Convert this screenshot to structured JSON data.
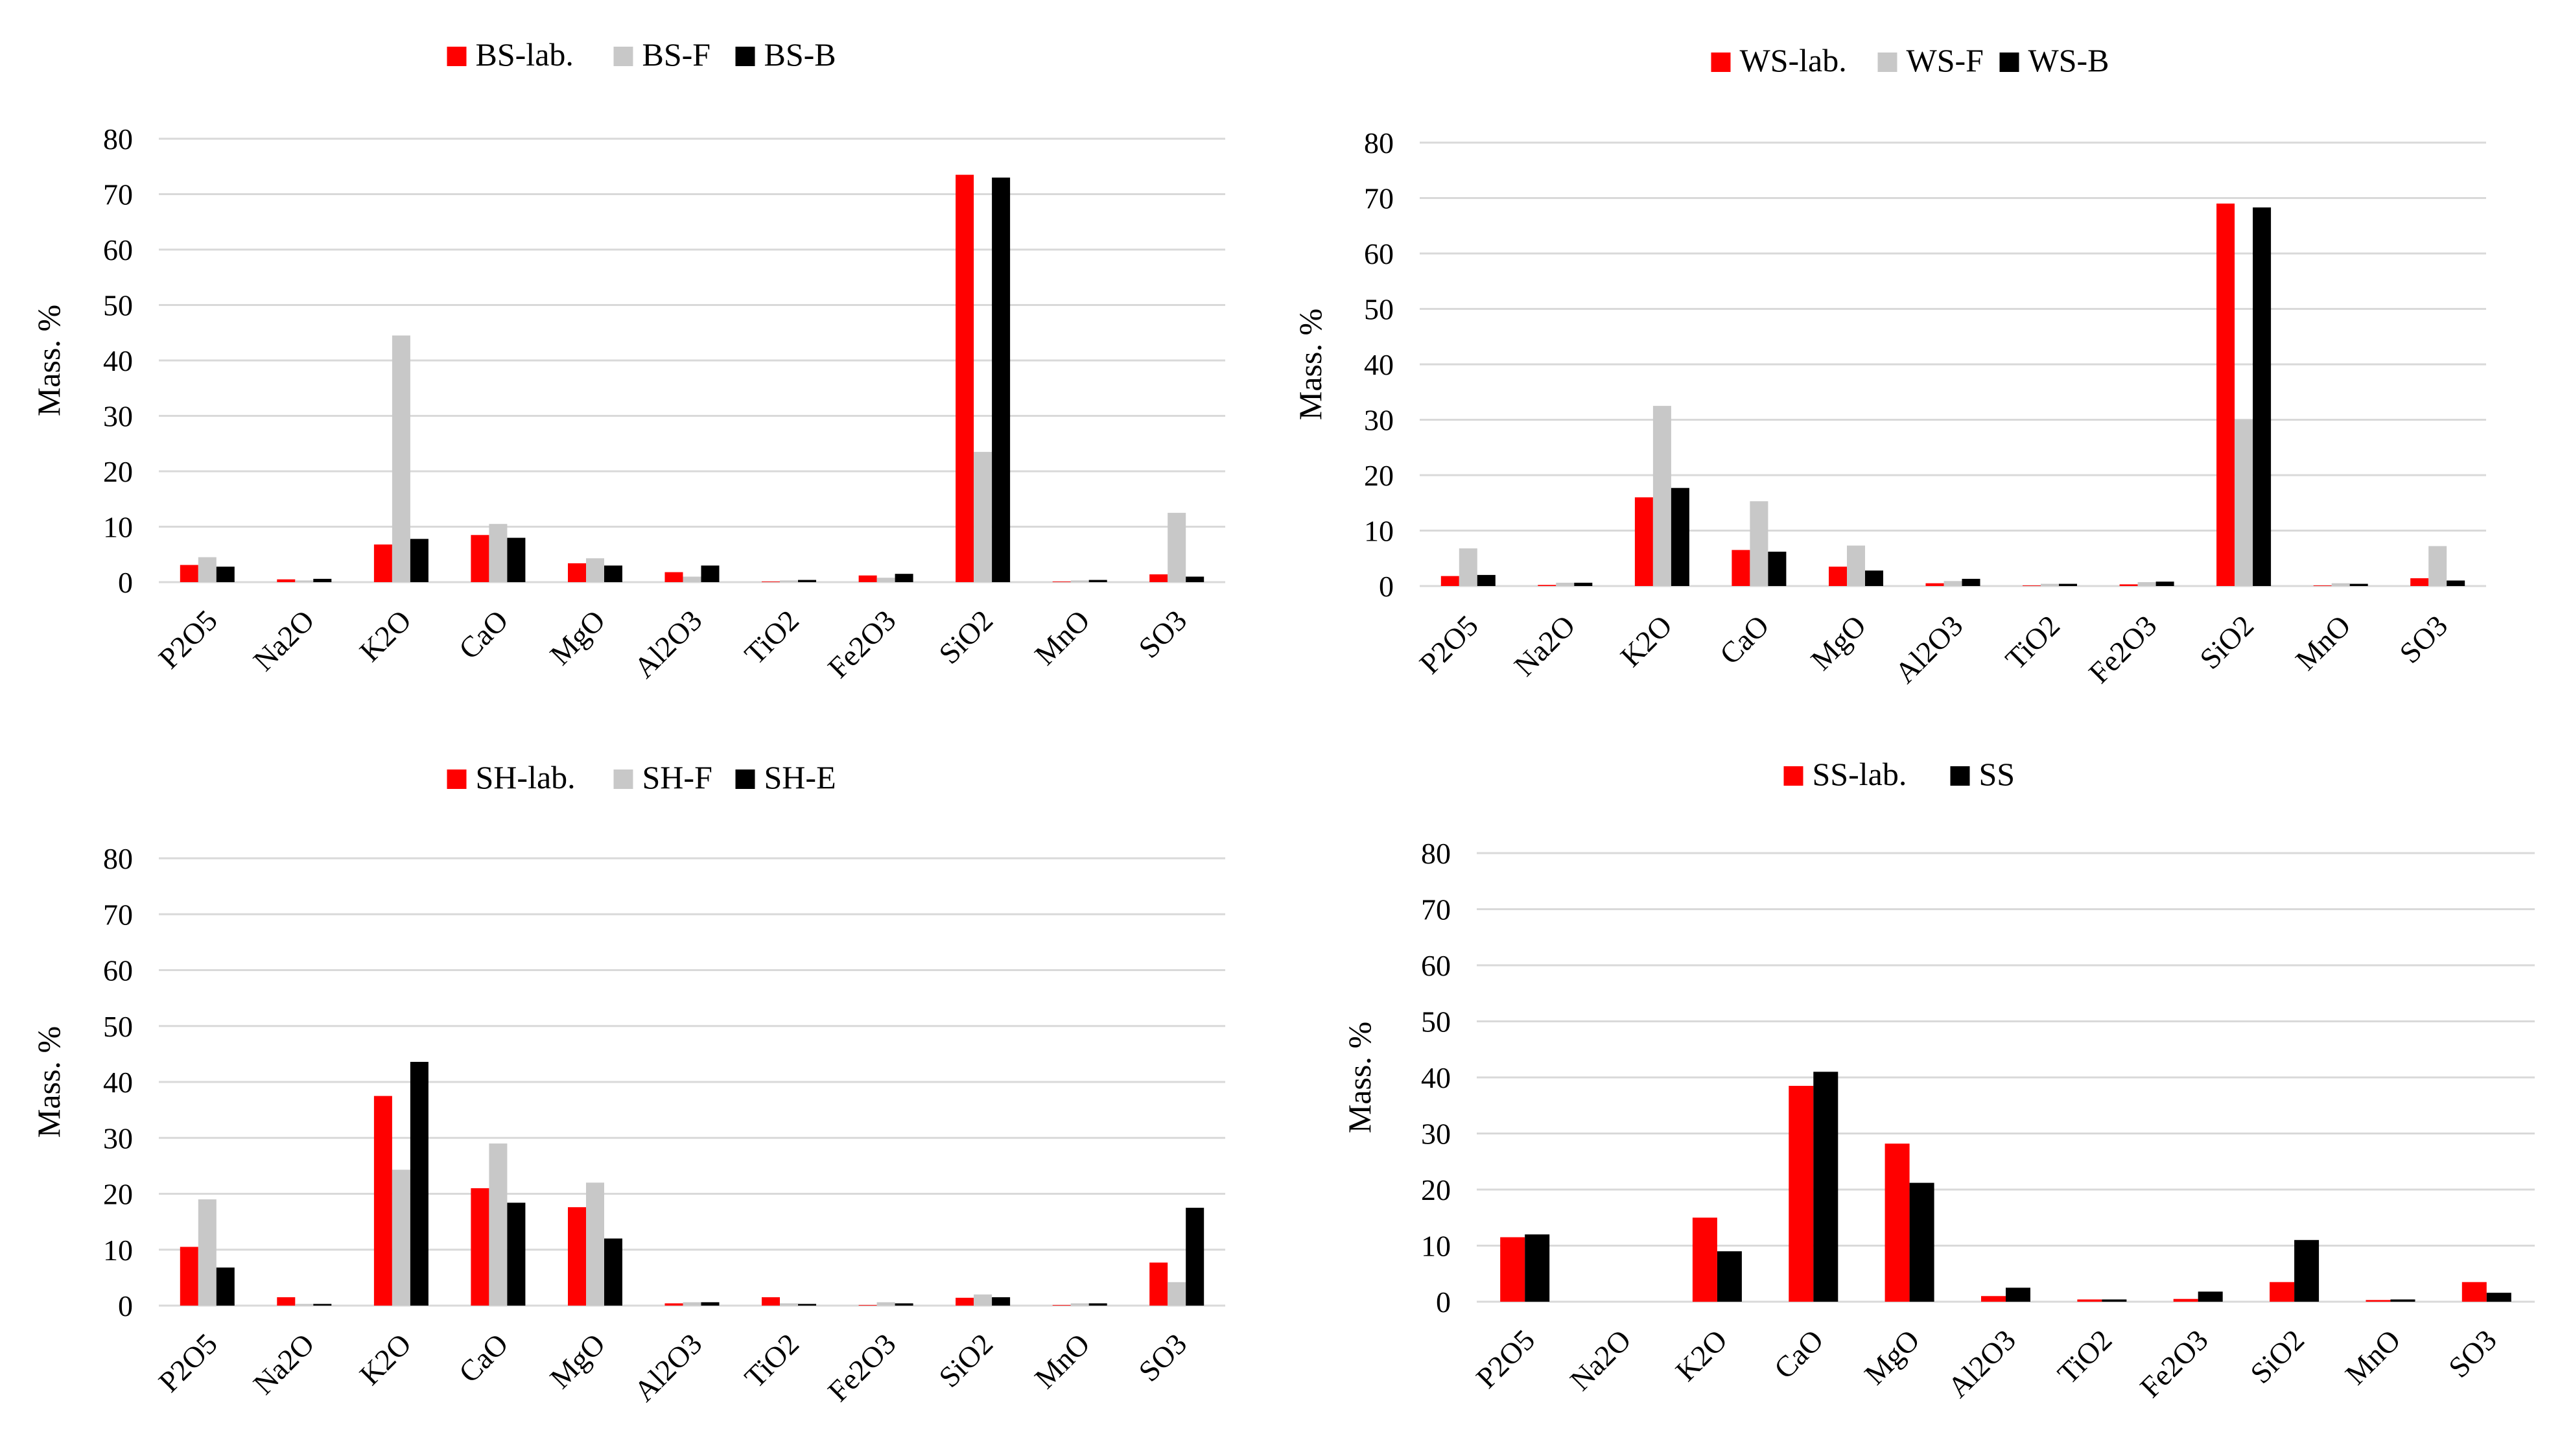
{
  "colors": {
    "lab": "#ff0000",
    "F": "#c8c8c8",
    "B": "#000000",
    "grid": "#d9d9d9"
  },
  "chart_data": [
    {
      "type": "bar",
      "panel": "top-left",
      "title": "",
      "legend_position": "top",
      "xlabel": "",
      "ylabel": "Mass. %",
      "ylim": [
        0,
        80
      ],
      "yticks": [
        0,
        10,
        20,
        30,
        40,
        50,
        60,
        70,
        80
      ],
      "grid": true,
      "categories": [
        "P2O5",
        "Na2O",
        "K2O",
        "CaO",
        "MgO",
        "Al2O3",
        "TiO2",
        "Fe2O3",
        "SiO2",
        "MnO",
        "SO3"
      ],
      "series": [
        {
          "name": "BS-lab.",
          "color": "#ff0000",
          "values": [
            3.1,
            0.5,
            6.8,
            8.5,
            3.4,
            1.8,
            0.1,
            1.2,
            73.5,
            0.1,
            1.4
          ]
        },
        {
          "name": "BS-F",
          "color": "#c8c8c8",
          "values": [
            4.5,
            0.3,
            44.5,
            10.5,
            4.3,
            1.0,
            0.3,
            0.8,
            23.5,
            0.3,
            12.5
          ]
        },
        {
          "name": "BS-B",
          "color": "#000000",
          "values": [
            2.8,
            0.6,
            7.8,
            8.0,
            3.0,
            3.0,
            0.4,
            1.5,
            73.0,
            0.4,
            1.0
          ]
        }
      ]
    },
    {
      "type": "bar",
      "panel": "top-right",
      "title": "",
      "legend_position": "top",
      "xlabel": "",
      "ylabel": "Mass. %",
      "ylim": [
        0,
        80
      ],
      "yticks": [
        0,
        10,
        20,
        30,
        40,
        50,
        60,
        70,
        80
      ],
      "grid": true,
      "categories": [
        "P2O5",
        "Na2O",
        "K2O",
        "CaO",
        "MgO",
        "Al2O3",
        "TiO2",
        "Fe2O3",
        "SiO2",
        "MnO",
        "SO3"
      ],
      "series": [
        {
          "name": "WS-lab.",
          "color": "#ff0000",
          "values": [
            1.8,
            0.2,
            16.0,
            6.5,
            3.5,
            0.5,
            0.1,
            0.3,
            69.0,
            0.1,
            1.4
          ]
        },
        {
          "name": "WS-F",
          "color": "#c8c8c8",
          "values": [
            6.8,
            0.6,
            32.5,
            15.3,
            7.3,
            0.9,
            0.4,
            0.7,
            30.0,
            0.5,
            7.2
          ]
        },
        {
          "name": "WS-B",
          "color": "#000000",
          "values": [
            2.0,
            0.6,
            17.7,
            6.2,
            2.8,
            1.3,
            0.4,
            0.8,
            68.3,
            0.4,
            1.0
          ]
        }
      ]
    },
    {
      "type": "bar",
      "panel": "bottom-left",
      "title": "",
      "legend_position": "top",
      "xlabel": "",
      "ylabel": "Mass. %",
      "ylim": [
        0,
        80
      ],
      "yticks": [
        0,
        10,
        20,
        30,
        40,
        50,
        60,
        70,
        80
      ],
      "grid": true,
      "categories": [
        "P2O5",
        "Na2O",
        "K2O",
        "CaO",
        "MgO",
        "Al2O3",
        "TiO2",
        "Fe2O3",
        "SiO2",
        "MnO",
        "SO3"
      ],
      "series": [
        {
          "name": "SH-lab.",
          "color": "#ff0000",
          "values": [
            10.5,
            1.5,
            37.5,
            21.0,
            17.6,
            0.4,
            1.5,
            0.1,
            1.4,
            0.1,
            7.7
          ]
        },
        {
          "name": "SH-F",
          "color": "#c8c8c8",
          "values": [
            19.0,
            0.3,
            24.3,
            29.0,
            22.0,
            0.6,
            0.4,
            0.6,
            2.0,
            0.4,
            4.2
          ]
        },
        {
          "name": "SH-E",
          "color": "#000000",
          "values": [
            6.8,
            0.3,
            43.6,
            18.4,
            12.0,
            0.6,
            0.3,
            0.4,
            1.5,
            0.4,
            17.5
          ]
        }
      ]
    },
    {
      "type": "bar",
      "panel": "bottom-right",
      "title": "",
      "legend_position": "top",
      "xlabel": "",
      "ylabel": "Mass. %",
      "ylim": [
        0,
        80
      ],
      "yticks": [
        0,
        10,
        20,
        30,
        40,
        50,
        60,
        70,
        80
      ],
      "grid": true,
      "categories": [
        "P2O5",
        "Na2O",
        "K2O",
        "CaO",
        "MgO",
        "Al2O3",
        "TiO2",
        "Fe2O3",
        "SiO2",
        "MnO",
        "SO3"
      ],
      "series": [
        {
          "name": "SS-lab.",
          "color": "#ff0000",
          "values": [
            11.5,
            0,
            15.0,
            38.5,
            28.2,
            1.0,
            0.4,
            0.5,
            3.5,
            0.3,
            3.5
          ]
        },
        {
          "name": "SS",
          "color": "#000000",
          "values": [
            12.0,
            0,
            9.0,
            41.0,
            21.2,
            2.5,
            0.4,
            1.8,
            11.0,
            0.4,
            1.6
          ]
        }
      ]
    }
  ]
}
